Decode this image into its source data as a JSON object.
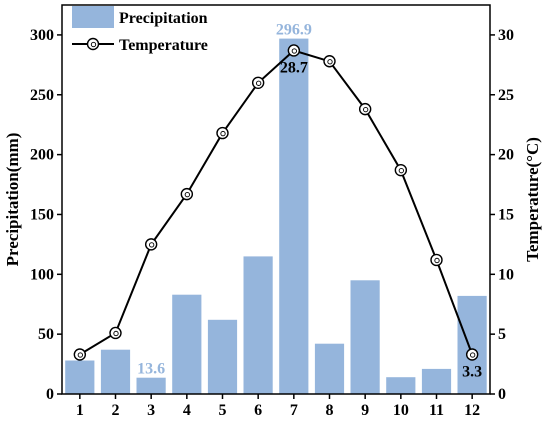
{
  "chart_data": {
    "type": "bar",
    "categories": [
      "1",
      "2",
      "3",
      "4",
      "5",
      "6",
      "7",
      "8",
      "9",
      "10",
      "11",
      "12"
    ],
    "series": [
      {
        "name": "Precipitation",
        "kind": "bar",
        "axis": "left",
        "color": "#95b5dc",
        "values": [
          28,
          37,
          13.6,
          83,
          62,
          115,
          296.9,
          42,
          95,
          14,
          21,
          82
        ]
      },
      {
        "name": "Temperature",
        "kind": "line",
        "axis": "right",
        "color": "#000000",
        "values": [
          3.3,
          5.1,
          12.5,
          16.7,
          21.8,
          26.0,
          28.7,
          27.8,
          23.8,
          18.7,
          11.2,
          3.3
        ]
      }
    ],
    "ylabel": "Precipitation(mm)",
    "y2label": "Temperature(°C)",
    "ylim": [
      0,
      325
    ],
    "y2lim": [
      0,
      32.5
    ],
    "yticks": [
      0,
      50,
      100,
      150,
      200,
      250,
      300
    ],
    "y2ticks": [
      0,
      5,
      10,
      15,
      20,
      25,
      30
    ],
    "grid": false,
    "legend_position": "top-left",
    "annotations": [
      {
        "series": "Precipitation",
        "index": 2,
        "text": "13.6"
      },
      {
        "series": "Precipitation",
        "index": 6,
        "text": "296.9"
      },
      {
        "series": "Temperature",
        "index": 6,
        "text": "28.7"
      },
      {
        "series": "Temperature",
        "index": 11,
        "text": "3.3"
      }
    ]
  }
}
